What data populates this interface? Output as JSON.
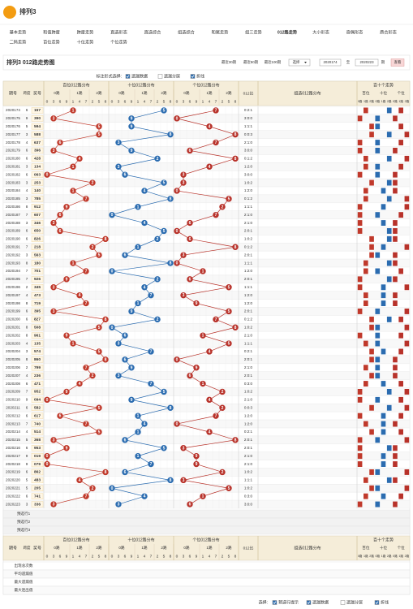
{
  "header": {
    "title": "排列3"
  },
  "nav": [
    [
      "基本走势",
      "和值跨度",
      "跨度走势",
      "直选形态",
      "直选综合",
      "组选综合",
      "和尾走势",
      "组三走势",
      "012路走势",
      "大小形态",
      "奇偶形态",
      "质合形态"
    ],
    [
      "二码走势",
      "百位走势",
      "十位走势",
      "个位走势"
    ]
  ],
  "nav_active": [
    0,
    8
  ],
  "title_bar": {
    "title": "排列3 012路走势图",
    "links": [
      "最近30期",
      "最近50期",
      "最近100期"
    ],
    "select": "选择",
    "from": "2020174",
    "to_label": "至",
    "to": "2020223",
    "unit": "期",
    "button": "查看"
  },
  "options": {
    "label": "标注形式选择:",
    "items": [
      {
        "text": "遗漏数据",
        "checked": true
      },
      {
        "text": "遗漏分层",
        "checked": false
      },
      {
        "text": "折线",
        "checked": true
      }
    ]
  },
  "table": {
    "headers": {
      "issue": "期号",
      "span": "跨度",
      "number": "奖号",
      "positions": [
        "百位012路分布",
        "十位012路分布",
        "个位012路分布"
      ],
      "routes": [
        "0路",
        "1路",
        "2路"
      ],
      "route_digits": [
        [
          0,
          3,
          6,
          9
        ],
        [
          1,
          4,
          7
        ],
        [
          2,
          5,
          8
        ]
      ],
      "ratio": "012比",
      "group": "组选012路分布",
      "trend": "百十个走势",
      "trend_sub": [
        "百位",
        "十位",
        "个位"
      ]
    },
    "position_colors": [
      "#c0392b",
      "#2b6cb0",
      "#b8322a"
    ],
    "rows": [
      [
        "2020174",
        6,
        "157",
        [
          1,
          5,
          7
        ],
        "0:2:1"
      ],
      [
        "2020175",
        9,
        "390",
        [
          3,
          9,
          0
        ],
        "3:0:0"
      ],
      [
        "2020176",
        5,
        "594",
        [
          5,
          9,
          4
        ],
        "1:1:1"
      ],
      [
        "2020177",
        3,
        "588",
        [
          5,
          8,
          8
        ],
        "0:0:3"
      ],
      [
        "2020178",
        4,
        "637",
        [
          6,
          3,
          7
        ],
        "2:1:0"
      ],
      [
        "2020179",
        6,
        "396",
        [
          3,
          9,
          6
        ],
        "3:0:0"
      ],
      [
        "2020180",
        6,
        "428",
        [
          4,
          2,
          8
        ],
        "0:1:2"
      ],
      [
        "2020181",
        3,
        "134",
        [
          1,
          3,
          4
        ],
        "1:2:0"
      ],
      [
        "2020182",
        6,
        "063",
        [
          0,
          6,
          3
        ],
        "3:0:0"
      ],
      [
        "2020183",
        3,
        "253",
        [
          2,
          5,
          3
        ],
        "1:0:2"
      ],
      [
        "2020184",
        4,
        "140",
        [
          1,
          4,
          0
        ],
        "1:2:0"
      ],
      [
        "2020185",
        3,
        "785",
        [
          7,
          8,
          5
        ],
        "0:1:2"
      ],
      [
        "2020186",
        8,
        "912",
        [
          9,
          1,
          2
        ],
        "1:1:1"
      ],
      [
        "2020187",
        7,
        "607",
        [
          6,
          0,
          7
        ],
        "2:1:0"
      ],
      [
        "2020188",
        3,
        "346",
        [
          3,
          4,
          6
        ],
        "2:1:0"
      ],
      [
        "2020189",
        6,
        "650",
        [
          6,
          5,
          0
        ],
        "2:0:1"
      ],
      [
        "2020190",
        6,
        "826",
        [
          8,
          2,
          6
        ],
        "1:0:2"
      ],
      [
        "2020191",
        7,
        "218",
        [
          2,
          1,
          8
        ],
        "0:1:2"
      ],
      [
        "2020192",
        3,
        "563",
        [
          5,
          6,
          3
        ],
        "2:0:1"
      ],
      [
        "2020193",
        8,
        "180",
        [
          1,
          8,
          0
        ],
        "1:1:1"
      ],
      [
        "2020194",
        7,
        "701",
        [
          7,
          0,
          1
        ],
        "1:2:0"
      ],
      [
        "2020195",
        7,
        "926",
        [
          9,
          2,
          6
        ],
        "2:0:1"
      ],
      [
        "2020196",
        2,
        "345",
        [
          3,
          4,
          5
        ],
        "1:1:1"
      ],
      [
        "2020197",
        4,
        "473",
        [
          4,
          7,
          3
        ],
        "1:2:0"
      ],
      [
        "2020198",
        8,
        "719",
        [
          7,
          1,
          9
        ],
        "1:2:0"
      ],
      [
        "2020199",
        6,
        "395",
        [
          3,
          9,
          5
        ],
        "2:0:1"
      ],
      [
        "2020200",
        6,
        "827",
        [
          8,
          2,
          7
        ],
        "0:1:2"
      ],
      [
        "2020201",
        8,
        "508",
        [
          5,
          0,
          8
        ],
        "1:0:2"
      ],
      [
        "2020202",
        8,
        "961",
        [
          9,
          6,
          1
        ],
        "2:1:0"
      ],
      [
        "2020203",
        4,
        "135",
        [
          1,
          3,
          5
        ],
        "1:1:1"
      ],
      [
        "2020204",
        3,
        "574",
        [
          5,
          7,
          4
        ],
        "0:2:1"
      ],
      [
        "2020205",
        8,
        "860",
        [
          8,
          6,
          0
        ],
        "2:0:1"
      ],
      [
        "2020206",
        2,
        "799",
        [
          7,
          9,
          9
        ],
        "2:1:0"
      ],
      [
        "2020207",
        4,
        "236",
        [
          2,
          3,
          6
        ],
        "2:0:1"
      ],
      [
        "2020208",
        6,
        "471",
        [
          4,
          7,
          1
        ],
        "0:3:0"
      ],
      [
        "2020209",
        7,
        "952",
        [
          9,
          5,
          2
        ],
        "1:0:2"
      ],
      [
        "2020210",
        9,
        "094",
        [
          0,
          9,
          4
        ],
        "2:1:0"
      ],
      [
        "2020211",
        6,
        "582",
        [
          5,
          8,
          2
        ],
        "0:0:3"
      ],
      [
        "2020212",
        6,
        "617",
        [
          6,
          1,
          7
        ],
        "1:2:0"
      ],
      [
        "2020213",
        7,
        "740",
        [
          7,
          4,
          0
        ],
        "1:2:0"
      ],
      [
        "2020214",
        4,
        "514",
        [
          5,
          1,
          4
        ],
        "0:2:1"
      ],
      [
        "2020215",
        5,
        "368",
        [
          3,
          6,
          8
        ],
        "2:0:1"
      ],
      [
        "2020216",
        6,
        "953",
        [
          9,
          5,
          3
        ],
        "2:0:1"
      ],
      [
        "2020217",
        9,
        "019",
        [
          0,
          1,
          9
        ],
        "2:1:0"
      ],
      [
        "2020218",
        9,
        "079",
        [
          0,
          7,
          9
        ],
        "2:1:0"
      ],
      [
        "2020219",
        6,
        "862",
        [
          8,
          6,
          2
        ],
        "1:0:2"
      ],
      [
        "2020220",
        5,
        "483",
        [
          4,
          8,
          3
        ],
        "1:1:1"
      ],
      [
        "2020221",
        5,
        "205",
        [
          2,
          0,
          5
        ],
        "1:0:2"
      ],
      [
        "2020222",
        6,
        "741",
        [
          7,
          4,
          1
        ],
        "0:3:0"
      ],
      [
        "2020223",
        3,
        "336",
        [
          3,
          3,
          6
        ],
        "3:0:0"
      ]
    ],
    "preset_rows": [
      "预选行1",
      "预选行2",
      "预选行3"
    ],
    "stats": [
      "出现总次数",
      "平均遗漏值",
      "最大遗漏值",
      "最大连出值"
    ]
  },
  "footer": {
    "label": "选择:",
    "items": [
      {
        "text": "预选行提示",
        "checked": true
      },
      {
        "text": "遗漏数据",
        "checked": true
      },
      {
        "text": "遗漏分层",
        "checked": false
      },
      {
        "text": "折线",
        "checked": true
      }
    ]
  }
}
